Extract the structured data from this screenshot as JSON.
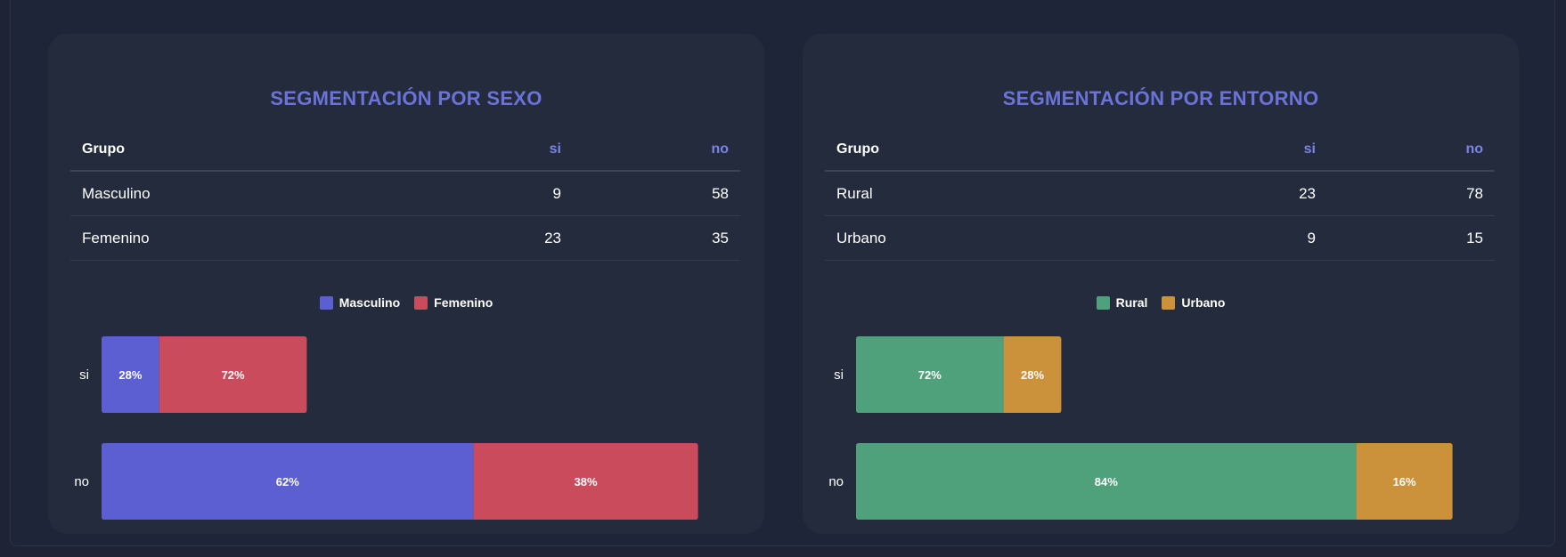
{
  "colors": {
    "masculino": "#5b5fd2",
    "femenino": "#c94b5c",
    "rural": "#4ea17a",
    "urbano": "#cc913b"
  },
  "panels": [
    {
      "title": "SEGMENTACIÓN POR SEXO",
      "table": {
        "headers": [
          "Grupo",
          "si",
          "no"
        ],
        "rows": [
          [
            "Masculino",
            "9",
            "58"
          ],
          [
            "Femenino",
            "23",
            "35"
          ]
        ]
      },
      "legend": [
        "Masculino",
        "Femenino"
      ]
    },
    {
      "title": "SEGMENTACIÓN POR ENTORNO",
      "table": {
        "headers": [
          "Grupo",
          "si",
          "no"
        ],
        "rows": [
          [
            "Rural",
            "23",
            "78"
          ],
          [
            "Urbano",
            "9",
            "15"
          ]
        ]
      },
      "legend": [
        "Rural",
        "Urbano"
      ]
    }
  ],
  "chart_data": [
    {
      "type": "bar",
      "orientation": "horizontal",
      "stacked": true,
      "categories": [
        "si",
        "no"
      ],
      "series": [
        {
          "name": "Masculino",
          "values": [
            9,
            58
          ],
          "labels": [
            "28%",
            "62%"
          ],
          "color": "#5b5fd2"
        },
        {
          "name": "Femenino",
          "values": [
            23,
            35
          ],
          "labels": [
            "72%",
            "38%"
          ],
          "color": "#c94b5c"
        }
      ],
      "xlim": [
        0,
        100
      ],
      "legend": "top-center",
      "grid": false
    },
    {
      "type": "bar",
      "orientation": "horizontal",
      "stacked": true,
      "categories": [
        "si",
        "no"
      ],
      "series": [
        {
          "name": "Rural",
          "values": [
            23,
            78
          ],
          "labels": [
            "72%",
            "84%"
          ],
          "color": "#4ea17a"
        },
        {
          "name": "Urbano",
          "values": [
            9,
            15
          ],
          "labels": [
            "28%",
            "16%"
          ],
          "color": "#cc913b"
        }
      ],
      "xlim": [
        0,
        100
      ],
      "legend": "top-center",
      "grid": false
    }
  ]
}
